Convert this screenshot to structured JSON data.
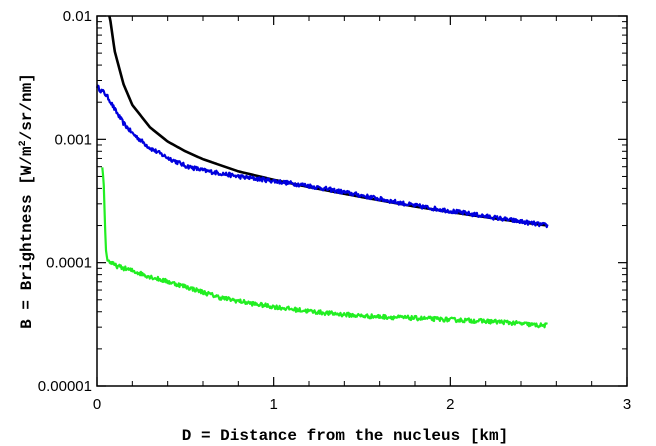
{
  "chart_data": {
    "type": "line",
    "title": "",
    "xlabel": "D = Distance from the nucleus [km]",
    "ylabel": {
      "prefix": "B = Brightness [W/m",
      "sup": "2",
      "suffix": "/sr/nm]"
    },
    "xlim": [
      0,
      3
    ],
    "ylim": [
      1e-05,
      0.01
    ],
    "yscale": "log",
    "grid": false,
    "legend": "none",
    "x_ticks": [
      {
        "value": 0,
        "label": "0"
      },
      {
        "value": 1,
        "label": "1"
      },
      {
        "value": 2,
        "label": "2"
      },
      {
        "value": 3,
        "label": "3"
      }
    ],
    "y_ticks": [
      {
        "value": 1e-05,
        "label": "0.00001"
      },
      {
        "value": 0.0001,
        "label": "0.0001"
      },
      {
        "value": 0.001,
        "label": "0.001"
      },
      {
        "value": 0.01,
        "label": "0.01"
      }
    ],
    "series": [
      {
        "color": "#000000",
        "style": "smooth",
        "x": [
          0.07,
          0.1,
          0.15,
          0.2,
          0.3,
          0.4,
          0.5,
          0.6,
          0.8,
          1.0,
          1.2,
          1.5,
          1.8,
          2.1,
          2.4,
          2.55
        ],
        "y": [
          0.0105,
          0.0052,
          0.0028,
          0.0019,
          0.00125,
          0.00096,
          0.0008,
          0.00069,
          0.00055,
          0.00047,
          0.00041,
          0.00034,
          0.000285,
          0.000245,
          0.000213,
          0.0002
        ]
      },
      {
        "color": "#0000dd",
        "style": "noisy",
        "x": [
          0.0,
          0.02,
          0.04,
          0.07,
          0.1,
          0.15,
          0.2,
          0.3,
          0.4,
          0.5,
          0.6,
          0.7,
          0.8,
          1.0,
          1.2,
          1.5,
          1.8,
          2.1,
          2.4,
          2.55
        ],
        "y": [
          0.0027,
          0.0025,
          0.0024,
          0.0021,
          0.00175,
          0.00135,
          0.00112,
          0.00085,
          0.00071,
          0.00061,
          0.00056,
          0.00053,
          0.0005,
          0.00046,
          0.00042,
          0.00035,
          0.00029,
          0.00025,
          0.000215,
          0.0002
        ]
      },
      {
        "color": "#22ee22",
        "style": "noisy",
        "x": [
          0.03,
          0.04,
          0.045,
          0.05,
          0.06,
          0.08,
          0.1,
          0.2,
          0.3,
          0.5,
          0.7,
          0.9,
          1.1,
          1.3,
          1.5,
          1.7,
          1.9,
          2.1,
          2.3,
          2.5,
          2.55
        ],
        "y": [
          0.0006,
          0.0004,
          0.0002,
          0.00013,
          0.000104,
          0.0001,
          9.5e-05,
          8.6e-05,
          7.7e-05,
          6.4e-05,
          5.2e-05,
          4.6e-05,
          4.2e-05,
          3.9e-05,
          3.7e-05,
          3.6e-05,
          3.5e-05,
          3.4e-05,
          3.3e-05,
          3.1e-05,
          3.1e-05
        ]
      }
    ]
  }
}
